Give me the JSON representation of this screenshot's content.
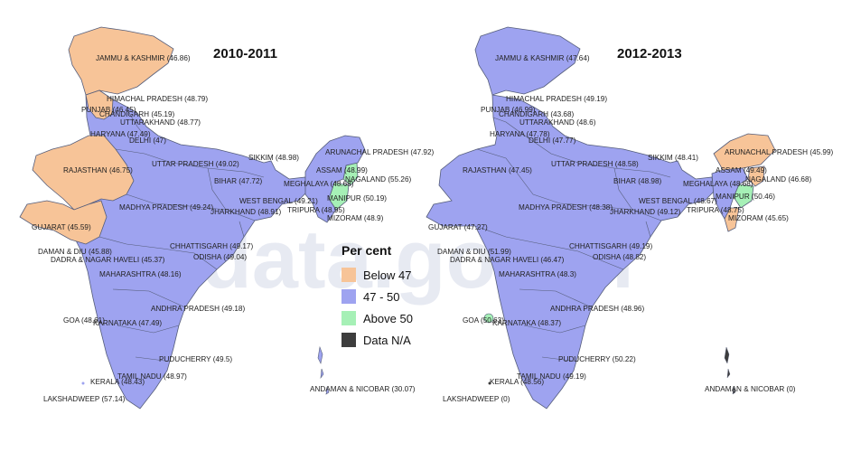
{
  "legend": {
    "title": "Per cent",
    "items": [
      {
        "label": "Below 47",
        "color": "#f7c498"
      },
      {
        "label": "47 - 50",
        "color": "#9ea3f0"
      },
      {
        "label": "Above 50",
        "color": "#a6f0b6"
      },
      {
        "label": "Data N/A",
        "color": "#3d3d3d"
      }
    ]
  },
  "watermark": "data.gov.in",
  "colors": {
    "below": "#f7c498",
    "mid": "#9ea3f0",
    "above": "#a6f0b6",
    "border": "#555d7a"
  },
  "maps": [
    {
      "title": "2010-2011",
      "labels": [
        "JAMMU & KASHMIR (46.86)",
        "HIMACHAL PRADESH (48.79)",
        "PUNJAB (46.45)",
        "CHANDIGARH (45.19)",
        "UTTARAKHAND (48.77)",
        "HARYANA (47.49)",
        "DELHI (47)",
        "UTTAR PRADESH (49.02)",
        "SIKKIM (48.98)",
        "ARUNACHAL PRADESH (47.92)",
        "ASSAM (48.99)",
        "NAGALAND (55.26)",
        "RAJASTHAN (46.75)",
        "BIHAR (47.72)",
        "MEGHALAYA (48.68)",
        "WEST BENGAL (49.21)",
        "MANIPUR (50.19)",
        "JHARKHAND (48.91)",
        "TRIPURA (48.95)",
        "MIZORAM (48.9)",
        "MADHYA PRADESH (49.24)",
        "GUJARAT (45.59)",
        "CHHATTISGARH (49.17)",
        "ODISHA (49.04)",
        "DAMAN & DIU (45.88)",
        "DADRA & NAGAR HAVELI (45.37)",
        "MAHARASHTRA (48.16)",
        "ANDHRA PRADESH (49.18)",
        "GOA (48.61)",
        "KARNATAKA (47.49)",
        "PUDUCHERRY (49.5)",
        "TAMIL NADU (48.97)",
        "KERALA (48.43)",
        "LAKSHADWEEP (57.14)",
        "ANDAMAN & NICOBAR (30.07)"
      ]
    },
    {
      "title": "2012-2013",
      "labels": [
        "JAMMU & KASHMIR (47.64)",
        "HIMACHAL PRADESH (49.19)",
        "PUNJAB (46.99)",
        "CHANDIGARH (43.68)",
        "UTTARAKHAND (48.6)",
        "HARYANA (47.78)",
        "DELHI (47.77)",
        "UTTAR PRADESH (48.58)",
        "SIKKIM (48.41)",
        "ARUNACHAL PRADESH (45.99)",
        "ASSAM (49.49)",
        "NAGALAND (46.68)",
        "RAJASTHAN (47.45)",
        "BIHAR (48.98)",
        "MEGHALAYA (48.68)",
        "WEST BENGAL (48.67)",
        "MANIPUR (50.46)",
        "JHARKHAND (49.12)",
        "TRIPURA (48.75)",
        "MIZORAM (45.65)",
        "MADHYA PRADESH (48.38)",
        "GUJARAT (47.27)",
        "CHHATTISGARH (49.19)",
        "ODISHA (48.82)",
        "DAMAN & DIU (51.99)",
        "DADRA & NAGAR HAVELI (46.47)",
        "MAHARASHTRA (48.3)",
        "ANDHRA PRADESH (48.96)",
        "GOA (50.63)",
        "KARNATAKA (48.37)",
        "PUDUCHERRY (50.22)",
        "TAMIL NADU (49.19)",
        "KERALA (48.56)",
        "LAKSHADWEEP (0)",
        "ANDAMAN & NICOBAR (0)"
      ]
    }
  ]
}
